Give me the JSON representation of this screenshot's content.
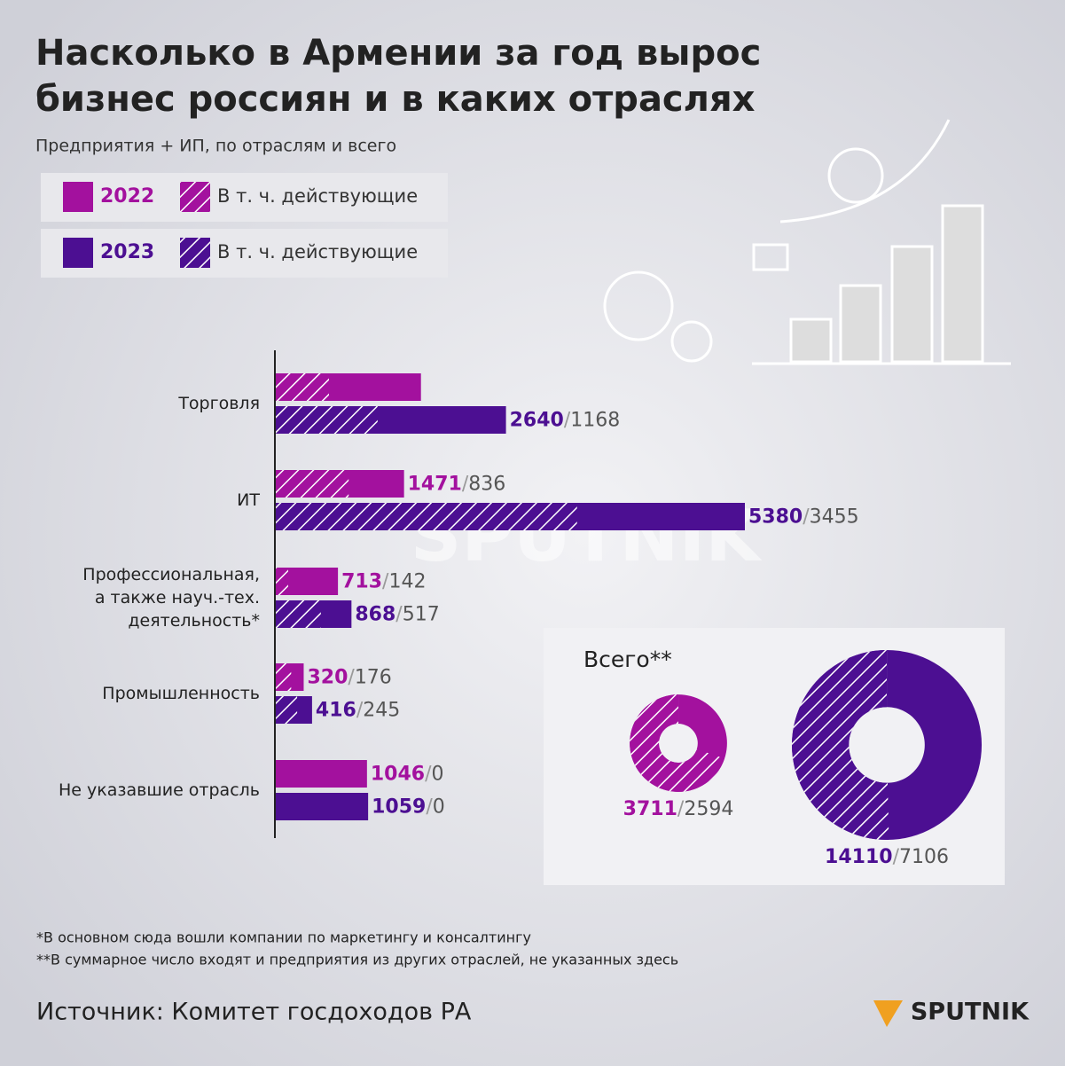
{
  "header": {
    "title_lines": [
      "Насколько в Армении за год вырос",
      "бизнес россиян и в каких отраслях"
    ],
    "subtitle": "Предприятия + ИП, по отраслям и всего"
  },
  "chart_data": {
    "type": "bar",
    "orientation": "horizontal",
    "categories": [
      "Торговля",
      "ИТ",
      "Профессиональная,\nа также науч.-тех.\nдеятельность*",
      "Промышленность",
      "Не указавшие отрасль"
    ],
    "active_label": "В  т. ч. действующие",
    "separator": "/",
    "series": [
      {
        "name": "2022",
        "color": "#a3119e",
        "values": [
          1665,
          1471,
          713,
          320,
          1046
        ],
        "active": [
          610,
          836,
          142,
          176,
          0
        ],
        "value_labels": [
          null,
          "1471",
          "713",
          "320",
          "1046"
        ],
        "active_labels": [
          null,
          "836",
          "142",
          "176",
          "0"
        ]
      },
      {
        "name": "2023",
        "color": "#4c0f92",
        "values": [
          2640,
          5380,
          868,
          416,
          1059
        ],
        "active": [
          1168,
          3455,
          517,
          245,
          0
        ],
        "value_labels": [
          "2640",
          "5380",
          "868",
          "416",
          "1059"
        ],
        "active_labels": [
          "1168",
          "3455",
          "517",
          "245",
          "0"
        ]
      }
    ],
    "totals": {
      "title": "Всего**",
      "values": [
        3711,
        14110
      ],
      "active": [
        2594,
        7106
      ]
    }
  },
  "footnotes": [
    "*В основном сюда вошли компании по маркетингу и консалтингу",
    "**В суммарное число входят и предприятия из других отраслей, не указанных здесь"
  ],
  "source": "Источник: Комитет госдоходов РА",
  "brand": "SPUTNIK"
}
